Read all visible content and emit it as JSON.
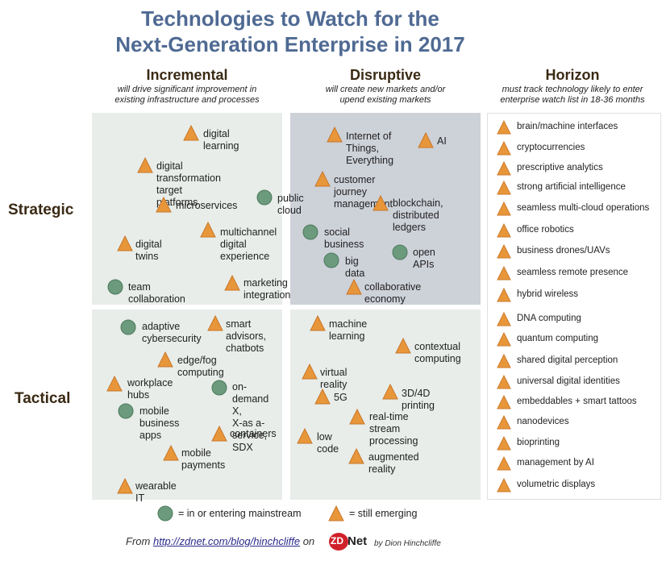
{
  "title": {
    "line1": "Technologies to Watch for the",
    "line2": "Next-Generation Enterprise in 2017"
  },
  "columns": [
    {
      "heading": "Incremental",
      "subtitle": "will drive significant improvement in\nexisting infrastructure and processes"
    },
    {
      "heading": "Disruptive",
      "subtitle": "will create new markets and/or\nupend existing markets"
    },
    {
      "heading": "Horizon",
      "subtitle": "must track technology likely to enter\nenterprise watch list in 18-36 months"
    }
  ],
  "rows": {
    "strategic": "Strategic",
    "tactical": "Tactical"
  },
  "colors": {
    "triangle": "#e8963a",
    "circle": "#6b9a7c",
    "title": "#4f6a93"
  },
  "quadrants": {
    "incremental_strategic": [
      {
        "label": "digital learning",
        "status": "emerging"
      },
      {
        "label": "digital transformation\ntarget platforms",
        "status": "emerging"
      },
      {
        "label": "microservices",
        "status": "emerging"
      },
      {
        "label": "public cloud",
        "status": "mainstream"
      },
      {
        "label": "digital twins",
        "status": "emerging"
      },
      {
        "label": "multichannel\ndigital\nexperience",
        "status": "emerging"
      },
      {
        "label": "team collaboration",
        "status": "mainstream"
      },
      {
        "label": "marketing integration",
        "status": "emerging"
      }
    ],
    "disruptive_strategic": [
      {
        "label": "Internet of\nThings,\nEverything",
        "status": "emerging"
      },
      {
        "label": "AI",
        "status": "emerging"
      },
      {
        "label": "customer journey management",
        "status": "emerging"
      },
      {
        "label": "blockchain,\ndistributed ledgers",
        "status": "emerging"
      },
      {
        "label": "social business",
        "status": "mainstream"
      },
      {
        "label": "open APIs",
        "status": "mainstream"
      },
      {
        "label": "big data",
        "status": "mainstream"
      },
      {
        "label": "collaborative economy",
        "status": "emerging"
      }
    ],
    "incremental_tactical": [
      {
        "label": "adaptive\ncybersecurity",
        "status": "mainstream"
      },
      {
        "label": "smart advisors,\nchatbots",
        "status": "emerging"
      },
      {
        "label": "edge/fog computing",
        "status": "emerging"
      },
      {
        "label": "workplace hubs",
        "status": "emerging"
      },
      {
        "label": "on-demand X,\nX-as a-service,\nSDX",
        "status": "mainstream"
      },
      {
        "label": "mobile business\napps",
        "status": "mainstream"
      },
      {
        "label": "containers",
        "status": "emerging"
      },
      {
        "label": "mobile payments",
        "status": "emerging"
      },
      {
        "label": "wearable IT",
        "status": "emerging"
      }
    ],
    "disruptive_tactical": [
      {
        "label": "machine learning",
        "status": "emerging"
      },
      {
        "label": "contextual\ncomputing",
        "status": "emerging"
      },
      {
        "label": "virtual reality",
        "status": "emerging"
      },
      {
        "label": "5G",
        "status": "emerging"
      },
      {
        "label": "3D/4D printing",
        "status": "emerging"
      },
      {
        "label": "real-time stream\nprocessing",
        "status": "emerging"
      },
      {
        "label": "low code",
        "status": "emerging"
      },
      {
        "label": "augmented reality",
        "status": "emerging"
      }
    ]
  },
  "horizon": [
    "brain/machine interfaces",
    "cryptocurrencies",
    "prescriptive analytics",
    "strong artificial intelligence",
    "seamless multi-cloud operations",
    "office robotics",
    "business drones/UAVs",
    "seamless remote presence",
    "hybrid wireless",
    "DNA computing",
    "quantum computing",
    "shared digital perception",
    "universal digital identities",
    "embeddables + smart tattoos",
    "nanodevices",
    "bioprinting",
    "management by AI",
    "volumetric displays"
  ],
  "legend": {
    "mainstream": "= in or entering mainstream",
    "emerging": "= still emerging"
  },
  "footer": {
    "from": "From",
    "url": "http://zdnet.com/blog/hinchcliffe",
    "on": "on",
    "zd": "ZD",
    "net": "Net",
    "byline": "by Dion Hinchcliffe"
  }
}
